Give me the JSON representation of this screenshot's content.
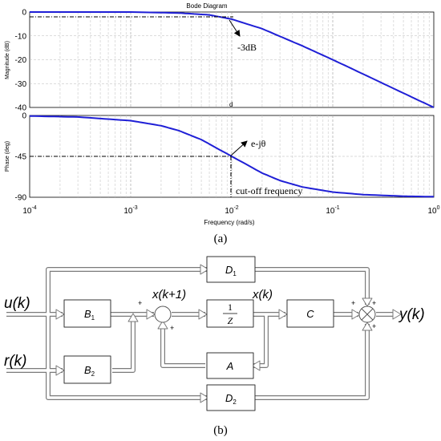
{
  "bode": {
    "title": "Bode Diagram",
    "xlabel": "Frequency  (rad/s)",
    "mag_ylabel": "Magnitude (dB)",
    "phase_ylabel": "Phase (deg)",
    "mag_ticks": [
      "0",
      "-10",
      "-20",
      "-30",
      "-40"
    ],
    "phase_ticks": [
      "0",
      "-45",
      "-90"
    ],
    "x_ticks": [
      {
        "base": "10",
        "exp": "-4"
      },
      {
        "base": "10",
        "exp": "-3"
      },
      {
        "base": "10",
        "exp": "-2"
      },
      {
        "base": "10",
        "exp": "-1"
      },
      {
        "base": "10",
        "exp": "0"
      }
    ],
    "annotation_3db": "-3dB",
    "annotation_phase": "e-jθ",
    "annotation_cutoff": "cut-off frequency",
    "stray_label": "d",
    "panel_label": "(a)",
    "curve_color": "#1f1fd6"
  },
  "chart_data": {
    "type": "line",
    "xscale": "log",
    "xlim": [
      0.0001,
      1
    ],
    "cutoff_frequency": 0.01,
    "magnitude": {
      "ylabel": "Magnitude (dB)",
      "ylim": [
        -40,
        0
      ],
      "x": [
        0.0001,
        0.001,
        0.003,
        0.006,
        0.01,
        0.02,
        0.05,
        0.1,
        0.2,
        0.5,
        1
      ],
      "y": [
        0,
        0,
        -0.4,
        -1.2,
        -3,
        -7,
        -14.2,
        -20,
        -26,
        -34,
        -40
      ]
    },
    "phase": {
      "ylabel": "Phase (deg)",
      "ylim": [
        -90,
        0
      ],
      "x": [
        0.0001,
        0.0003,
        0.001,
        0.002,
        0.003,
        0.005,
        0.01,
        0.02,
        0.03,
        0.05,
        0.1,
        0.2,
        0.5,
        1
      ],
      "y": [
        -0.6,
        -1.7,
        -5.7,
        -11.3,
        -16.7,
        -26.6,
        -45,
        -63.4,
        -71.6,
        -78.7,
        -84.3,
        -87.1,
        -88.9,
        -89.4
      ]
    }
  },
  "diagram": {
    "input_u": "u(k)",
    "input_r": "r(k)",
    "output_y": "y(k)",
    "state_next": "x(k+1)",
    "state": "x(k)",
    "block_B1": {
      "main": "B",
      "sub": "1"
    },
    "block_B2": {
      "main": "B",
      "sub": "2"
    },
    "block_D1": {
      "main": "D",
      "sub": "1"
    },
    "block_D2": {
      "main": "D",
      "sub": "2"
    },
    "block_int_num": "1",
    "block_int_den": "Z",
    "block_C": "C",
    "block_A": "A",
    "plus": "+",
    "panel_label": "(b)"
  }
}
